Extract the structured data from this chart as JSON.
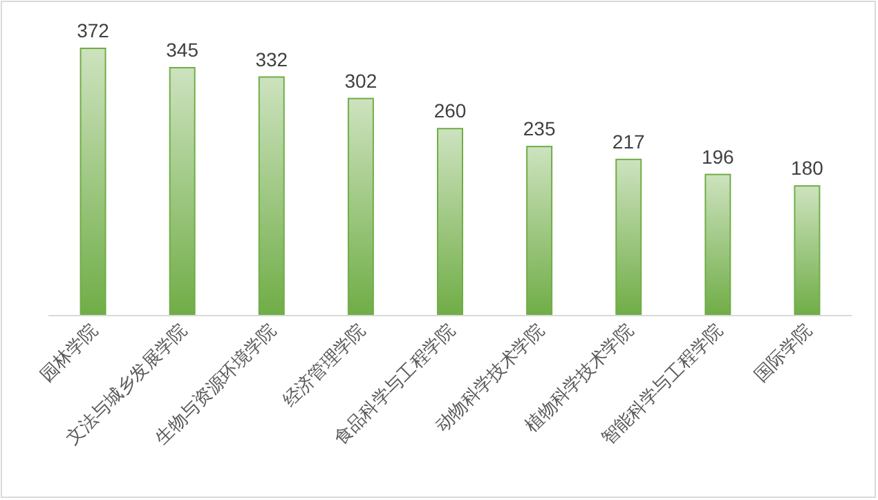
{
  "chart_data": {
    "type": "bar",
    "categories": [
      "园林学院",
      "文法与城乡发展学院",
      "生物与资源环境学院",
      "经济管理学院",
      "食品科学与工程学院",
      "动物科学技术学院",
      "植物科学技术学院",
      "智能科学与工程学院",
      "国际学院"
    ],
    "values": [
      372,
      345,
      332,
      302,
      260,
      235,
      217,
      196,
      180
    ],
    "color": "#70ad47",
    "data_labels": true
  }
}
